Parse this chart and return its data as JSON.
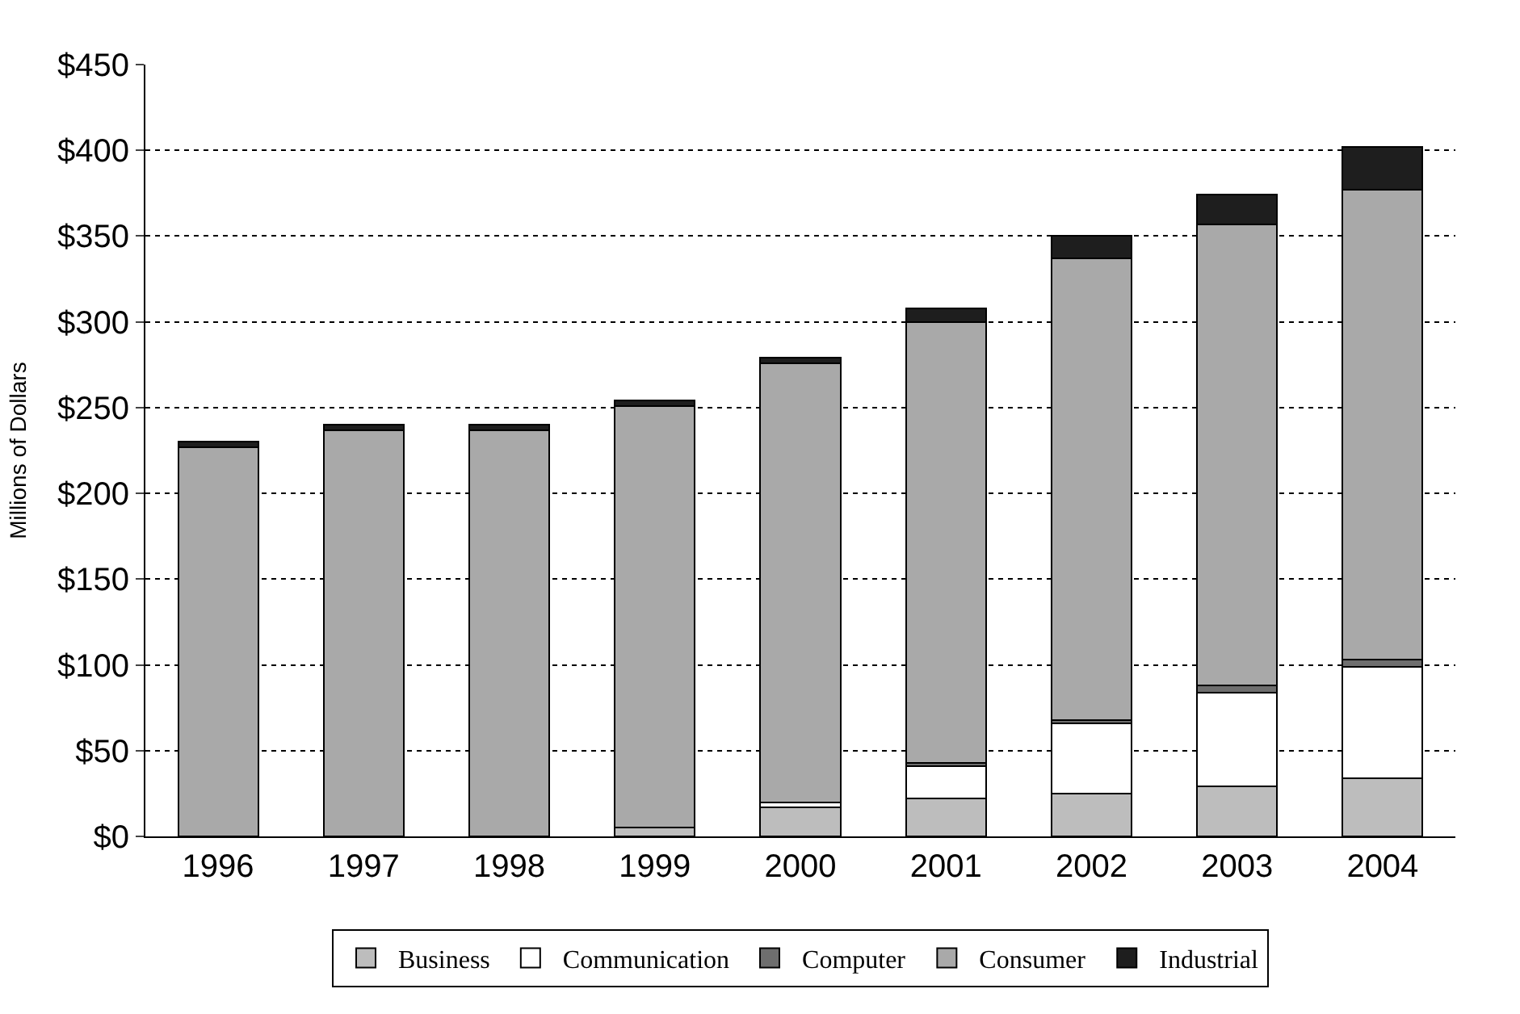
{
  "chart_data": {
    "type": "bar",
    "stacked": true,
    "ylabel": "Millions of Dollars",
    "categories": [
      "1996",
      "1997",
      "1998",
      "1999",
      "2000",
      "2001",
      "2002",
      "2003",
      "2004"
    ],
    "series": [
      {
        "name": "Business",
        "color": "#bdbdbd",
        "values": [
          0,
          0,
          0,
          5,
          17,
          22,
          25,
          29,
          34
        ]
      },
      {
        "name": "Communication",
        "color": "#ffffff",
        "values": [
          0,
          0,
          0,
          0,
          3,
          19,
          41,
          55,
          65
        ]
      },
      {
        "name": "Computer",
        "color": "#6e6e6e",
        "values": [
          0,
          0,
          0,
          0,
          0,
          2,
          2,
          4,
          4
        ]
      },
      {
        "name": "Consumer",
        "color": "#a9a9a9",
        "values": [
          227,
          237,
          237,
          246,
          256,
          257,
          269,
          269,
          274
        ]
      },
      {
        "name": "Industrial",
        "color": "#1e1e1e",
        "values": [
          3,
          3,
          3,
          3,
          3,
          8,
          13,
          17,
          25
        ]
      }
    ],
    "ylim": [
      0,
      450
    ],
    "yticks": [
      {
        "value": 0,
        "label": "$0"
      },
      {
        "value": 50,
        "label": "$50"
      },
      {
        "value": 100,
        "label": "$100"
      },
      {
        "value": 150,
        "label": "$150"
      },
      {
        "value": 200,
        "label": "$200"
      },
      {
        "value": 250,
        "label": "$250"
      },
      {
        "value": 300,
        "label": "$300"
      },
      {
        "value": 350,
        "label": "$350"
      },
      {
        "value": 400,
        "label": "$400"
      },
      {
        "value": 450,
        "label": "$450"
      }
    ],
    "grid": "y",
    "legend": "bottom"
  }
}
